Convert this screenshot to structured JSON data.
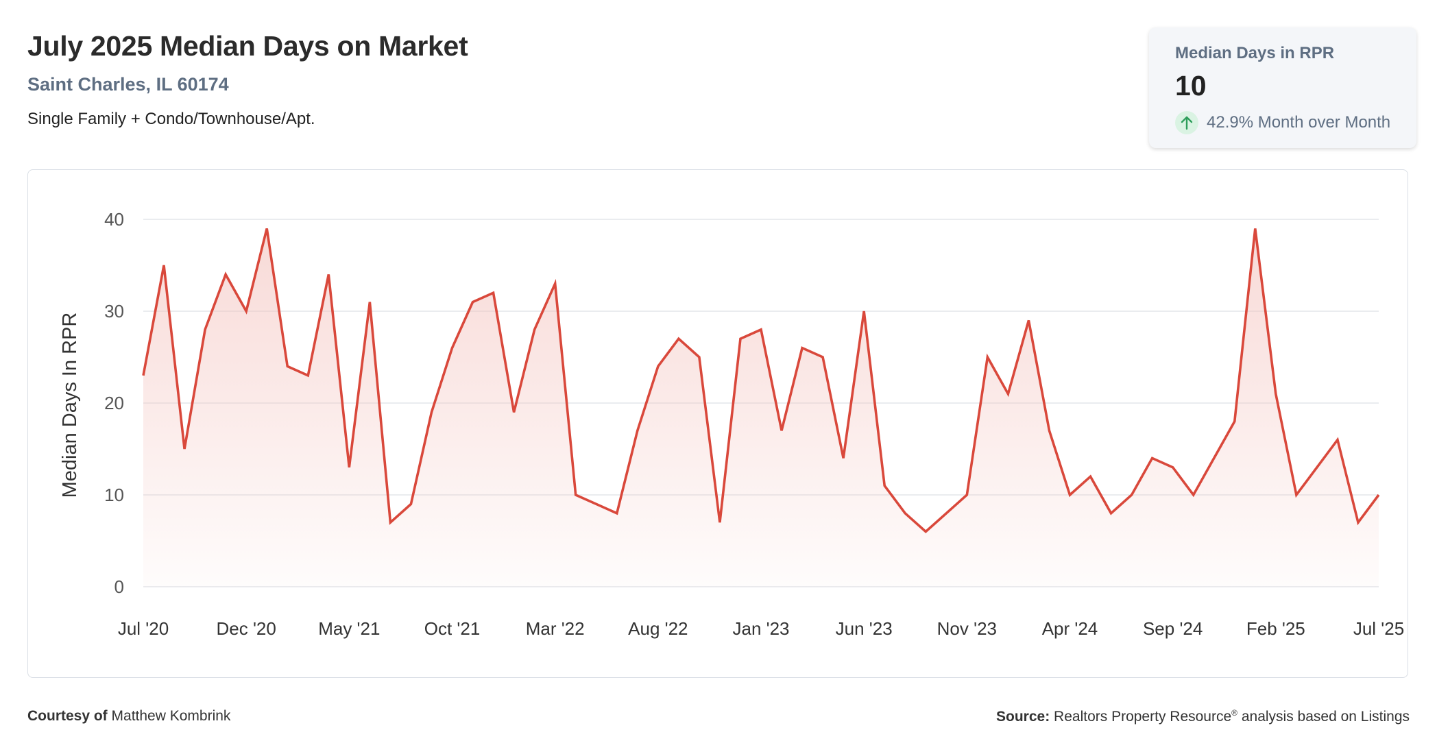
{
  "header": {
    "title": "July 2025 Median Days on Market",
    "location": "Saint Charles, IL 60174",
    "property_types": "Single Family + Condo/Townhouse/Apt."
  },
  "kpi": {
    "label": "Median Days in RPR",
    "value": "10",
    "change": "42.9% Month over Month",
    "direction_icon": "arrow-up-icon",
    "change_color": "#2e9e5b"
  },
  "footer": {
    "courtesy_label": "Courtesy of",
    "courtesy_name": "Matthew Kombrink",
    "source_label": "Source:",
    "source_text_before": "Realtors Property Resource",
    "source_sup": "®",
    "source_text_after": "analysis based on Listings"
  },
  "chart_data": {
    "type": "area",
    "ylabel": "Median Days In RPR",
    "ylim": [
      0,
      40
    ],
    "yticks": [
      0,
      10,
      20,
      30,
      40
    ],
    "line_color": "#d9483b",
    "fill_color": "#f3c1bc",
    "x_tick_labels": [
      "Jul '20",
      "Dec '20",
      "May '21",
      "Oct '21",
      "Mar '22",
      "Aug '22",
      "Jan '23",
      "Jun '23",
      "Nov '23",
      "Apr '24",
      "Sep '24",
      "Feb '25",
      "Jul '25"
    ],
    "x_tick_every": 5,
    "series": [
      {
        "values": [
          23,
          35,
          15,
          28,
          34,
          30,
          39,
          24,
          23,
          34,
          13,
          31,
          7,
          9,
          19,
          26,
          31,
          32,
          19,
          28,
          33,
          10,
          9,
          8,
          17,
          24,
          27,
          25,
          7,
          27,
          28,
          17,
          26,
          25,
          14,
          30,
          11,
          8,
          6,
          8,
          10,
          25,
          21,
          29,
          17,
          10,
          12,
          8,
          10,
          14,
          13,
          10,
          14,
          18,
          39,
          21,
          10,
          13,
          16,
          7,
          10
        ]
      }
    ]
  }
}
